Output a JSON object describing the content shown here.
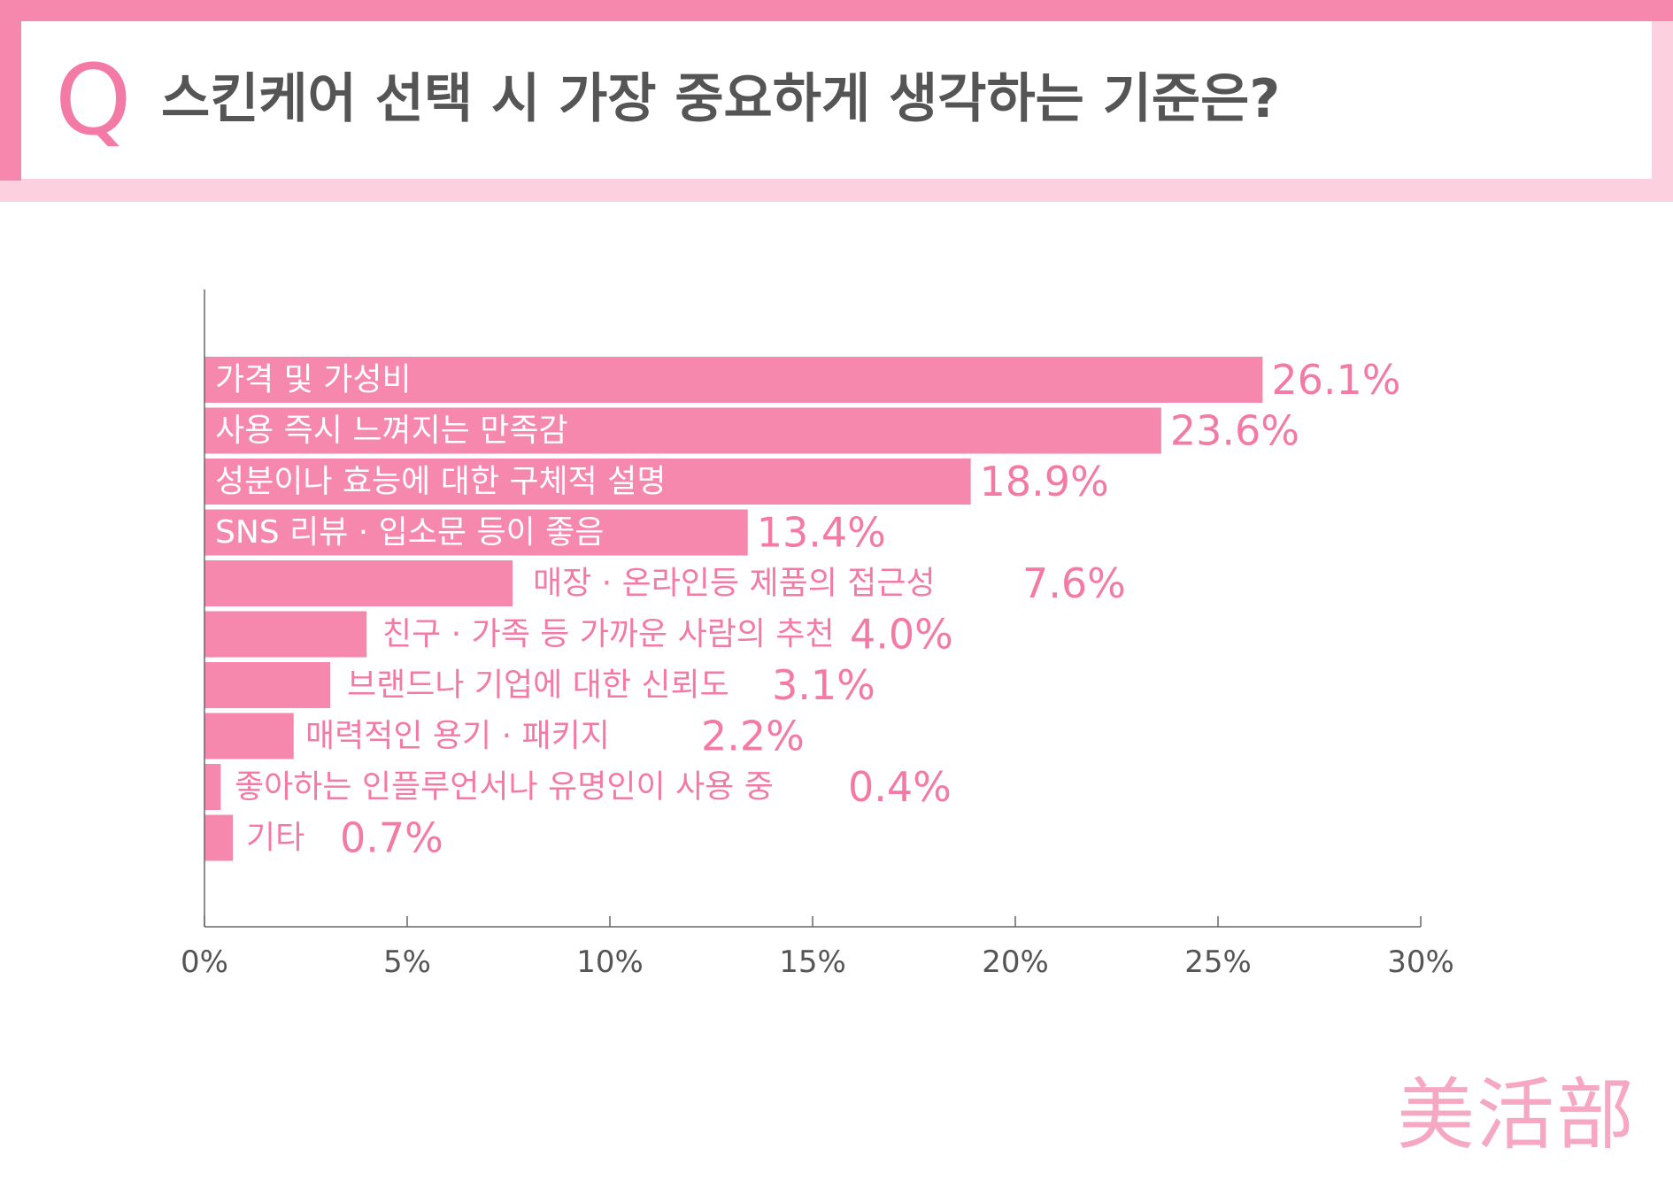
{
  "header": {
    "q_mark": "Q",
    "title": "스킨케어 선택 시 가장 중요하게 생각하는 기준은?"
  },
  "chart_data": {
    "type": "bar",
    "orientation": "horizontal",
    "categories": [
      "가격 및 가성비",
      "사용 즉시 느껴지는 만족감",
      "성분이나 효능에 대한 구체적 설명",
      "SNS 리뷰 · 입소문 등이 좋음",
      "매장 · 온라인등 제품의 접근성",
      "친구 · 가족 등 가까운 사람의 추천",
      "브랜드나 기업에 대한 신뢰도",
      "매력적인 용기 · 패키지",
      "좋아하는 인플루언서나 유명인이 사용 중",
      "기타"
    ],
    "values": [
      26.1,
      23.6,
      18.9,
      13.4,
      7.6,
      4.0,
      3.1,
      2.2,
      0.4,
      0.7
    ],
    "value_labels": [
      "26.1%",
      "23.6%",
      "18.9%",
      "13.4%",
      "7.6%",
      "4.0%",
      "3.1%",
      "2.2%",
      "0.4%",
      "0.7%"
    ],
    "xlim": [
      0,
      30
    ],
    "x_ticks": [
      "0%",
      "5%",
      "10%",
      "15%",
      "20%",
      "25%",
      "30%"
    ],
    "grid": false,
    "bar_color": "#f788ad",
    "label_color": "#f47aa6"
  },
  "brand": {
    "logo_text": "美活部",
    "color": "#f6a8c2"
  },
  "colors": {
    "accent": "#f788ad",
    "accent_light": "#fcd0df",
    "title_text": "#555555"
  }
}
